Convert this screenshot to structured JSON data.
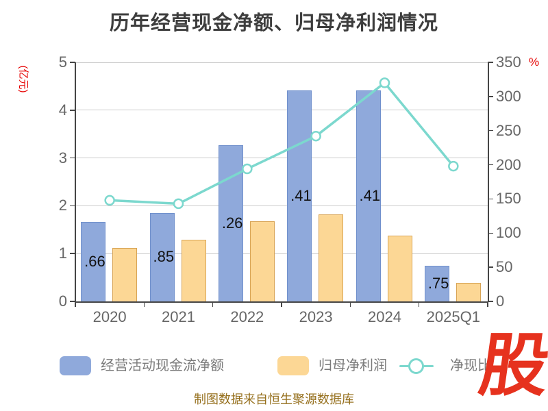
{
  "title": "历年经营现金净额、归母净利润情况",
  "caption": "制图数据来自恒生聚源数据库",
  "watermark_text": "股",
  "colors": {
    "background": "#ffffff",
    "title": "#3d3d3d",
    "axis_line": "#454545",
    "gridline": "#cbcbcb",
    "axis_label": "#666666",
    "legend_text": "#7a7a7a",
    "bar_value_label": "#121212",
    "unit_label_red": "#e60000",
    "caption_gold": "#96701e",
    "watermark_red": "#e6321e"
  },
  "chart_data": {
    "type": "bar+line",
    "categories": [
      "2020",
      "2021",
      "2022",
      "2023",
      "2024",
      "2025Q1"
    ],
    "series": [
      {
        "name": "经营活动现金流净额",
        "type": "bar",
        "axis": "left",
        "color": "#8fa9db",
        "border_color": "#7090cc",
        "values": [
          1.66,
          1.85,
          3.26,
          4.41,
          4.41,
          0.75
        ],
        "bar_labels": [
          ".66",
          ".85",
          ".26",
          ".41",
          ".41",
          ".75"
        ]
      },
      {
        "name": "归母净利润",
        "type": "bar",
        "axis": "left",
        "color": "#fcd795",
        "border_color": "#d8a455",
        "values": [
          1.12,
          1.29,
          1.68,
          1.82,
          1.38,
          0.38
        ]
      },
      {
        "name": "净现比",
        "type": "line",
        "axis": "right",
        "color": "#7cd8ce",
        "marker": "circle-white-fill",
        "values": [
          148,
          143,
          194,
          242,
          320,
          198
        ]
      }
    ],
    "left_axis": {
      "unit": "(亿元)",
      "min": 0,
      "max": 5,
      "tick_labels": [
        "0",
        "1",
        "2",
        "3",
        "4",
        "5"
      ]
    },
    "right_axis": {
      "unit": "%",
      "min": 0,
      "max": 350,
      "tick_labels": [
        "0",
        "50",
        "100",
        "150",
        "200",
        "250",
        "300",
        "350"
      ]
    },
    "grid": true,
    "legend_position": "bottom"
  }
}
